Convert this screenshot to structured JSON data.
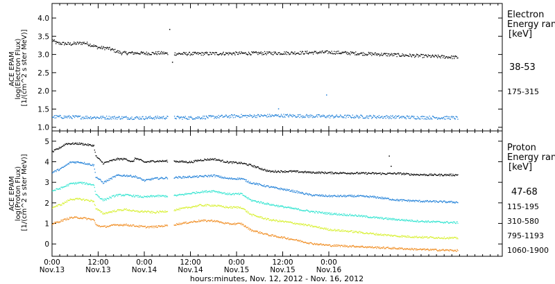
{
  "chart_data": [
    {
      "type": "scatter",
      "panel": "top",
      "ylabel": [
        "ACE EPAM",
        "log(Electron Flux)",
        "[1/(cm^2 s ster MeV)]"
      ],
      "ylim": [
        0.9,
        4.4
      ],
      "yticks": [
        1.0,
        1.5,
        2.0,
        2.5,
        3.0,
        3.5,
        4.0
      ],
      "ytick_labels": [
        "1.0",
        "1.5",
        "2.0",
        "2.5",
        "3.0",
        "3.5",
        "4.0"
      ],
      "legend_title": [
        "Electron",
        "Energy ran",
        "[keV]"
      ],
      "legend_placement": "right",
      "series": [
        {
          "name": "38-53",
          "color": "#000000",
          "points": [
            [
              0.0,
              3.4
            ],
            [
              0.05,
              3.32
            ],
            [
              0.2,
              3.3
            ],
            [
              0.35,
              3.33
            ],
            [
              0.5,
              3.2
            ],
            [
              0.6,
              3.18
            ],
            [
              0.75,
              3.05
            ],
            [
              0.95,
              3.05
            ],
            [
              1.0,
              3.04
            ],
            [
              1.2,
              3.05
            ],
            [
              1.25,
              3.03
            ],
            [
              1.5,
              3.03
            ],
            [
              2.0,
              3.04
            ],
            [
              2.5,
              3.05
            ],
            [
              3.0,
              3.07
            ],
            [
              3.5,
              3.02
            ],
            [
              4.0,
              2.97
            ],
            [
              4.4,
              2.93
            ]
          ],
          "outliers": [
            [
              1.27,
              3.7
            ],
            [
              1.3,
              2.8
            ]
          ]
        },
        {
          "name": "175-315",
          "color": "#1e7fd8",
          "points": [
            [
              0.0,
              1.3
            ],
            [
              0.5,
              1.28
            ],
            [
              1.0,
              1.27
            ],
            [
              1.25,
              1.28
            ],
            [
              1.5,
              1.27
            ],
            [
              2.0,
              1.32
            ],
            [
              2.5,
              1.33
            ],
            [
              3.0,
              1.31
            ],
            [
              3.5,
              1.3
            ],
            [
              4.0,
              1.28
            ],
            [
              4.4,
              1.27
            ]
          ],
          "outliers": [
            [
              2.45,
              1.52
            ],
            [
              2.97,
              1.9
            ]
          ]
        }
      ]
    },
    {
      "type": "scatter",
      "panel": "bottom",
      "ylabel": [
        "ACE EPAM",
        "log(Proton Flux)",
        "[1/(cm^2 s ster MeV)]"
      ],
      "ylim": [
        -0.6,
        5.5
      ],
      "yticks": [
        0,
        1,
        2,
        3,
        4,
        5
      ],
      "ytick_labels": [
        "0",
        "1",
        "2",
        "3",
        "4",
        "5"
      ],
      "legend_title": [
        "Proton",
        "Energy ran",
        "[keV]"
      ],
      "legend_placement": "right",
      "series": [
        {
          "name": "47-68",
          "color": "#000000",
          "points": [
            [
              0.0,
              4.5
            ],
            [
              0.08,
              4.7
            ],
            [
              0.15,
              4.9
            ],
            [
              0.3,
              4.9
            ],
            [
              0.45,
              4.8
            ],
            [
              0.47,
              4.3
            ],
            [
              0.55,
              3.95
            ],
            [
              0.7,
              4.15
            ],
            [
              0.8,
              4.15
            ],
            [
              0.87,
              4.0
            ],
            [
              0.9,
              4.2
            ],
            [
              1.0,
              4.0
            ],
            [
              1.1,
              4.05
            ],
            [
              1.3,
              4.05
            ],
            [
              1.5,
              4.0
            ],
            [
              1.6,
              4.1
            ],
            [
              1.75,
              4.15
            ],
            [
              1.9,
              4.0
            ],
            [
              2.05,
              3.95
            ],
            [
              2.15,
              3.85
            ],
            [
              2.35,
              3.55
            ],
            [
              2.6,
              3.55
            ],
            [
              2.8,
              3.5
            ],
            [
              3.0,
              3.48
            ],
            [
              3.2,
              3.47
            ],
            [
              3.5,
              3.45
            ],
            [
              3.6,
              3.44
            ],
            [
              3.75,
              3.45
            ],
            [
              3.9,
              3.4
            ],
            [
              4.1,
              3.38
            ],
            [
              4.4,
              3.38
            ]
          ],
          "outliers": [
            [
              3.65,
              4.3
            ],
            [
              3.67,
              3.8
            ]
          ]
        },
        {
          "name": "115-195",
          "color": "#1e7fd8",
          "points": [
            [
              0.0,
              3.5
            ],
            [
              0.1,
              3.7
            ],
            [
              0.2,
              4.0
            ],
            [
              0.3,
              4.0
            ],
            [
              0.45,
              3.85
            ],
            [
              0.47,
              3.3
            ],
            [
              0.55,
              3.0
            ],
            [
              0.7,
              3.35
            ],
            [
              0.8,
              3.35
            ],
            [
              0.9,
              3.3
            ],
            [
              1.0,
              3.1
            ],
            [
              1.1,
              3.2
            ],
            [
              1.3,
              3.25
            ],
            [
              1.6,
              3.3
            ],
            [
              1.75,
              3.35
            ],
            [
              1.9,
              3.2
            ],
            [
              2.05,
              3.2
            ],
            [
              2.15,
              3.0
            ],
            [
              2.35,
              2.8
            ],
            [
              2.6,
              2.6
            ],
            [
              2.8,
              2.4
            ],
            [
              3.0,
              2.35
            ],
            [
              3.3,
              2.35
            ],
            [
              3.5,
              2.3
            ],
            [
              3.75,
              2.15
            ],
            [
              4.0,
              2.1
            ],
            [
              4.4,
              2.05
            ]
          ]
        },
        {
          "name": "310-580",
          "color": "#30e4d0",
          "points": [
            [
              0.0,
              2.6
            ],
            [
              0.1,
              2.75
            ],
            [
              0.2,
              2.95
            ],
            [
              0.3,
              3.0
            ],
            [
              0.45,
              2.9
            ],
            [
              0.47,
              2.45
            ],
            [
              0.55,
              2.15
            ],
            [
              0.7,
              2.4
            ],
            [
              0.8,
              2.4
            ],
            [
              0.9,
              2.35
            ],
            [
              1.0,
              2.3
            ],
            [
              1.1,
              2.35
            ],
            [
              1.3,
              2.35
            ],
            [
              1.6,
              2.55
            ],
            [
              1.75,
              2.6
            ],
            [
              1.9,
              2.45
            ],
            [
              2.05,
              2.45
            ],
            [
              2.15,
              2.15
            ],
            [
              2.35,
              1.95
            ],
            [
              2.6,
              1.75
            ],
            [
              2.8,
              1.6
            ],
            [
              3.0,
              1.5
            ],
            [
              3.3,
              1.4
            ],
            [
              3.5,
              1.3
            ],
            [
              3.75,
              1.2
            ],
            [
              4.0,
              1.12
            ],
            [
              4.4,
              1.05
            ]
          ]
        },
        {
          "name": "795-1193",
          "color": "#d8f030",
          "points": [
            [
              0.0,
              1.8
            ],
            [
              0.1,
              1.95
            ],
            [
              0.2,
              2.2
            ],
            [
              0.3,
              2.2
            ],
            [
              0.45,
              2.1
            ],
            [
              0.47,
              1.75
            ],
            [
              0.55,
              1.5
            ],
            [
              0.7,
              1.65
            ],
            [
              0.8,
              1.7
            ],
            [
              0.9,
              1.6
            ],
            [
              1.0,
              1.6
            ],
            [
              1.1,
              1.55
            ],
            [
              1.3,
              1.65
            ],
            [
              1.6,
              1.9
            ],
            [
              1.75,
              1.9
            ],
            [
              1.9,
              1.8
            ],
            [
              2.05,
              1.8
            ],
            [
              2.15,
              1.45
            ],
            [
              2.35,
              1.2
            ],
            [
              2.6,
              1.05
            ],
            [
              2.8,
              0.9
            ],
            [
              3.0,
              0.72
            ],
            [
              3.3,
              0.6
            ],
            [
              3.5,
              0.5
            ],
            [
              3.75,
              0.4
            ],
            [
              4.0,
              0.35
            ],
            [
              4.4,
              0.3
            ]
          ]
        },
        {
          "name": "1060-1900",
          "color": "#f08c20",
          "points": [
            [
              0.0,
              1.0
            ],
            [
              0.1,
              1.15
            ],
            [
              0.2,
              1.3
            ],
            [
              0.3,
              1.3
            ],
            [
              0.45,
              1.2
            ],
            [
              0.47,
              0.95
            ],
            [
              0.55,
              0.85
            ],
            [
              0.7,
              0.95
            ],
            [
              0.8,
              0.95
            ],
            [
              0.9,
              0.9
            ],
            [
              1.0,
              0.85
            ],
            [
              1.1,
              0.85
            ],
            [
              1.3,
              0.95
            ],
            [
              1.6,
              1.15
            ],
            [
              1.75,
              1.15
            ],
            [
              1.9,
              1.0
            ],
            [
              2.05,
              1.0
            ],
            [
              2.15,
              0.7
            ],
            [
              2.35,
              0.45
            ],
            [
              2.6,
              0.25
            ],
            [
              2.8,
              0.05
            ],
            [
              3.0,
              -0.05
            ],
            [
              3.3,
              -0.1
            ],
            [
              3.5,
              -0.15
            ],
            [
              3.75,
              -0.2
            ],
            [
              4.0,
              -0.25
            ],
            [
              4.4,
              -0.3
            ]
          ]
        }
      ]
    }
  ],
  "x_axis": {
    "range_days": [
      0,
      4.88
    ],
    "ticks": [
      {
        "day": 0.0,
        "time": "0:00",
        "date": "Nov.13"
      },
      {
        "day": 0.5,
        "time": "12:00",
        "date": "Nov.13"
      },
      {
        "day": 1.0,
        "time": "0:00",
        "date": "Nov.14"
      },
      {
        "day": 1.5,
        "time": "12:00",
        "date": "Nov.14"
      },
      {
        "day": 2.0,
        "time": "0:00",
        "date": "Nov.15"
      },
      {
        "day": 2.5,
        "time": "12:00",
        "date": "Nov.15"
      },
      {
        "day": 3.0,
        "time": "0:00",
        "date": "Nov.16"
      }
    ],
    "title": "hours:minutes, Nov. 12, 2012 - Nov. 16, 2012"
  }
}
